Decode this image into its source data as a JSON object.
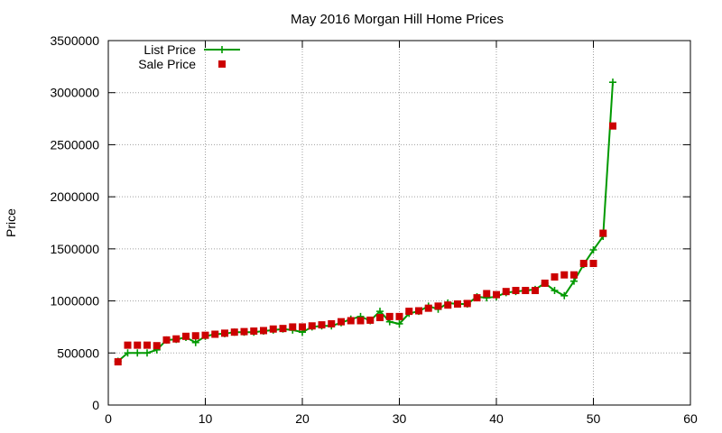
{
  "chart_data": {
    "type": "line",
    "title": "May 2016 Morgan Hill Home Prices",
    "xlabel": "",
    "ylabel": "Price",
    "xlim": [
      0,
      60
    ],
    "ylim": [
      0,
      3500000
    ],
    "xticks": [
      0,
      10,
      20,
      30,
      40,
      50,
      60
    ],
    "yticks": [
      0,
      500000,
      1000000,
      1500000,
      2000000,
      2500000,
      3000000,
      3500000
    ],
    "grid": true,
    "legend": {
      "position": "top-left"
    },
    "series": [
      {
        "name": "List Price",
        "style": "line-plus",
        "color": "#009900",
        "x": [
          1,
          2,
          3,
          4,
          5,
          6,
          7,
          8,
          9,
          10,
          11,
          12,
          13,
          14,
          15,
          16,
          17,
          18,
          19,
          20,
          21,
          22,
          23,
          24,
          25,
          26,
          27,
          28,
          29,
          30,
          31,
          32,
          33,
          34,
          35,
          36,
          37,
          38,
          39,
          40,
          41,
          42,
          43,
          44,
          45,
          46,
          47,
          48,
          49,
          50,
          51,
          52
        ],
        "y": [
          420000,
          500000,
          500000,
          500000,
          530000,
          625000,
          630000,
          650000,
          600000,
          660000,
          680000,
          685000,
          700000,
          700000,
          700000,
          710000,
          720000,
          730000,
          720000,
          700000,
          750000,
          760000,
          760000,
          790000,
          825000,
          850000,
          810000,
          900000,
          800000,
          780000,
          880000,
          900000,
          950000,
          920000,
          980000,
          970000,
          970000,
          1040000,
          1030000,
          1040000,
          1080000,
          1090000,
          1100000,
          1110000,
          1170000,
          1100000,
          1050000,
          1190000,
          1350000,
          1490000,
          1620000,
          3100000
        ]
      },
      {
        "name": "Sale Price",
        "style": "points-square",
        "color": "#cc0000",
        "x": [
          1,
          2,
          3,
          4,
          5,
          6,
          7,
          8,
          9,
          10,
          11,
          12,
          13,
          14,
          15,
          16,
          17,
          18,
          19,
          20,
          21,
          22,
          23,
          24,
          25,
          26,
          27,
          28,
          29,
          30,
          31,
          32,
          33,
          34,
          35,
          36,
          37,
          38,
          39,
          40,
          41,
          42,
          43,
          44,
          45,
          46,
          47,
          48,
          49,
          50,
          51,
          52
        ],
        "y": [
          415000,
          575000,
          575000,
          575000,
          570000,
          625000,
          635000,
          660000,
          665000,
          670000,
          680000,
          690000,
          700000,
          705000,
          710000,
          715000,
          730000,
          735000,
          750000,
          750000,
          760000,
          770000,
          780000,
          800000,
          810000,
          810000,
          815000,
          840000,
          850000,
          850000,
          900000,
          905000,
          930000,
          950000,
          960000,
          970000,
          975000,
          1030000,
          1070000,
          1060000,
          1090000,
          1100000,
          1100000,
          1100000,
          1170000,
          1230000,
          1250000,
          1250000,
          1360000,
          1360000,
          1650000,
          2680000
        ]
      }
    ]
  }
}
